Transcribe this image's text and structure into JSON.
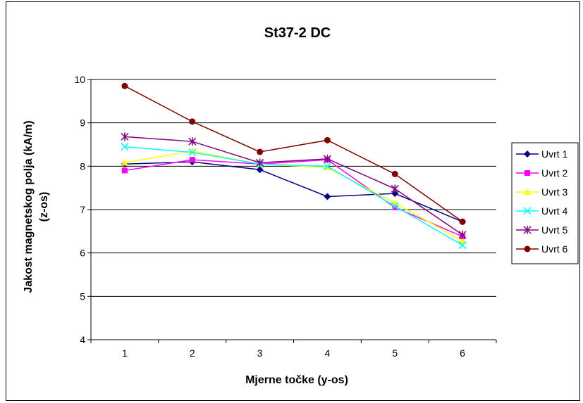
{
  "chart_data": {
    "type": "line",
    "title": "St37-2 DC",
    "xlabel": "Mjerne točke (y-os)",
    "ylabel_line1": "Jakost magnetskog polja (kA/m)",
    "ylabel_line2": "(z-os)",
    "categories": [
      "1",
      "2",
      "3",
      "4",
      "5",
      "6"
    ],
    "ylim": [
      4,
      10
    ],
    "yticks": [
      "4",
      "5",
      "6",
      "7",
      "8",
      "9",
      "10"
    ],
    "grid": true,
    "legend_position": "right",
    "series": [
      {
        "name": "Uvrt 1",
        "color": "#000080",
        "marker": "diamond",
        "values": [
          8.05,
          8.1,
          7.92,
          7.3,
          7.37,
          6.72
        ]
      },
      {
        "name": "Uvrt 2",
        "color": "#ff00ff",
        "marker": "square",
        "values": [
          7.9,
          8.15,
          8.05,
          8.15,
          7.05,
          6.38
        ]
      },
      {
        "name": "Uvrt 3",
        "color": "#ffff00",
        "marker": "triangle",
        "values": [
          8.08,
          8.35,
          8.05,
          7.97,
          7.15,
          6.28
        ]
      },
      {
        "name": "Uvrt 4",
        "color": "#00ffff",
        "marker": "x",
        "values": [
          8.45,
          8.32,
          8.05,
          8.0,
          7.08,
          6.18
        ]
      },
      {
        "name": "Uvrt 5",
        "color": "#800080",
        "marker": "star",
        "values": [
          8.68,
          8.57,
          8.08,
          8.17,
          7.48,
          6.42
        ]
      },
      {
        "name": "Uvrt 6",
        "color": "#800000",
        "marker": "circle",
        "values": [
          9.85,
          9.03,
          8.33,
          8.6,
          7.82,
          6.72
        ]
      }
    ]
  }
}
